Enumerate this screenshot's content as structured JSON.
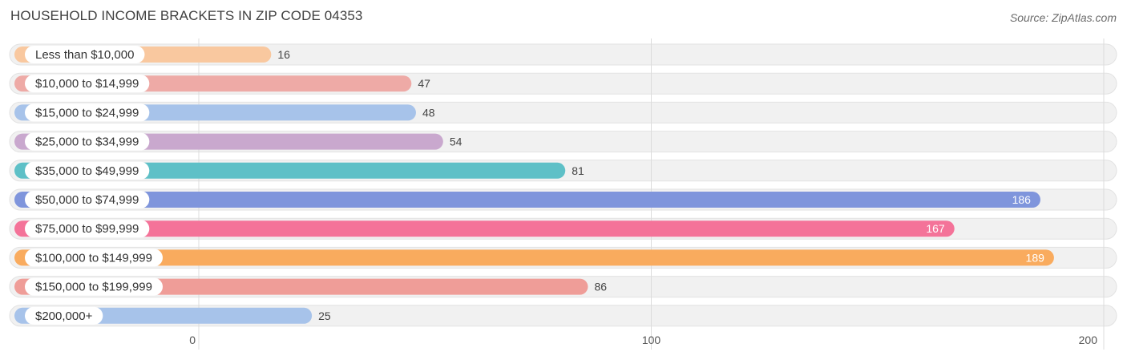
{
  "title": "HOUSEHOLD INCOME BRACKETS IN ZIP CODE 04353",
  "source": "Source: ZipAtlas.com",
  "chart_data": {
    "type": "bar",
    "orientation": "horizontal",
    "title": "HOUSEHOLD INCOME BRACKETS IN ZIP CODE 04353",
    "xlabel": "",
    "ylabel": "",
    "xlim": [
      0,
      200
    ],
    "ticks": [
      0,
      100,
      200
    ],
    "tick_labels": [
      "0",
      "100",
      "200"
    ],
    "grid": true,
    "categories": [
      "Less than $10,000",
      "$10,000 to $14,999",
      "$15,000 to $24,999",
      "$25,000 to $34,999",
      "$35,000 to $49,999",
      "$50,000 to $74,999",
      "$75,000 to $99,999",
      "$100,000 to $149,999",
      "$150,000 to $199,999",
      "$200,000+"
    ],
    "values": [
      16,
      47,
      48,
      54,
      81,
      186,
      167,
      189,
      86,
      25
    ],
    "value_labels": [
      "16",
      "47",
      "48",
      "54",
      "81",
      "186",
      "167",
      "189",
      "86",
      "25"
    ],
    "colors": [
      "#f9c89f",
      "#eeaaa6",
      "#a7c3ea",
      "#c9a8ce",
      "#5ec0c7",
      "#7f95dc",
      "#f47399",
      "#f9ab5e",
      "#ef9d98",
      "#a7c3ea"
    ]
  }
}
